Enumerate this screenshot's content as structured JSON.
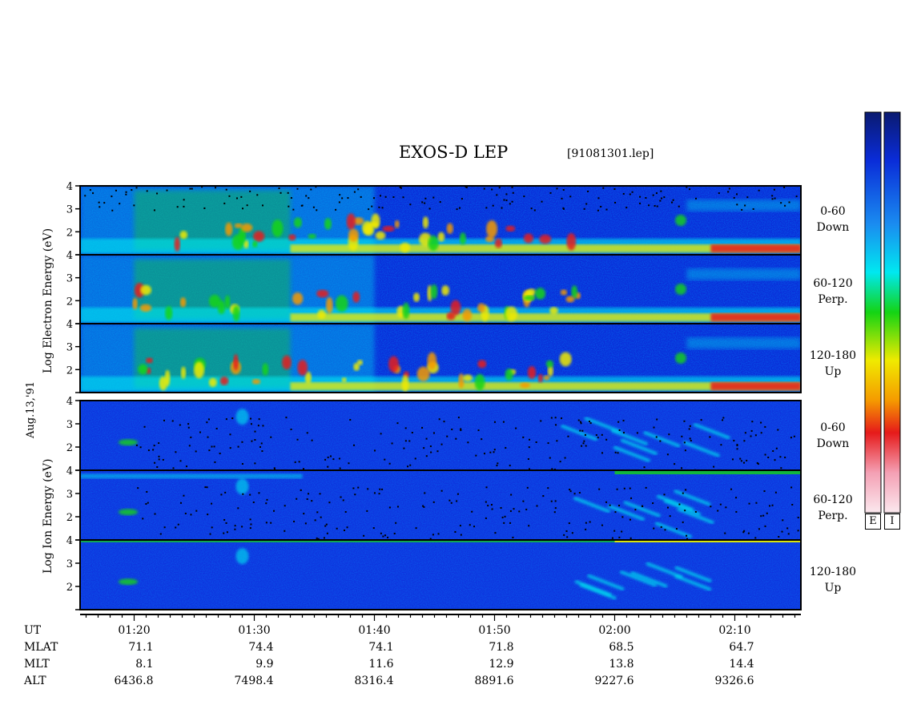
{
  "title": "EXOS-D LEP",
  "file_label": "[91081301.lep]",
  "date_label": "Aug.13,'91",
  "electron_ylabel": "Log Electron Energy (eV)",
  "ion_ylabel": "Log Ion Energy (eV)",
  "colorbar_labels": [
    "E",
    "I"
  ],
  "colors": {
    "background_blue": "#0a2cd8",
    "dark_blue": "#08157a",
    "cyan": "#00e8f0",
    "green": "#14d414",
    "yellow": "#f0ea00",
    "orange": "#f59a00",
    "red": "#e61a1a"
  },
  "chart_data": {
    "type": "heatmap",
    "title": "EXOS-D LEP",
    "x_unit": "UT",
    "x_tick_labels": [
      "01:20",
      "01:30",
      "01:40",
      "01:50",
      "02:00",
      "02:10"
    ],
    "xlim": [
      "01:15.5",
      "02:15.5"
    ],
    "panels": [
      {
        "species": "Electron",
        "pitch_angle": "0-60",
        "direction": "Down",
        "ylim": [
          1,
          4
        ],
        "y_ticks": [
          "2",
          "3",
          "4"
        ]
      },
      {
        "species": "Electron",
        "pitch_angle": "60-120",
        "direction": "Perp.",
        "ylim": [
          1,
          4
        ],
        "y_ticks": [
          "2",
          "3",
          "4"
        ]
      },
      {
        "species": "Electron",
        "pitch_angle": "120-180",
        "direction": "Up",
        "ylim": [
          1,
          4
        ],
        "y_ticks": [
          "2",
          "3",
          "4"
        ]
      },
      {
        "species": "Ion",
        "pitch_angle": "0-60",
        "direction": "Down",
        "ylim": [
          1,
          4
        ],
        "y_ticks": [
          "2",
          "3",
          "4"
        ]
      },
      {
        "species": "Ion",
        "pitch_angle": "60-120",
        "direction": "Perp.",
        "ylim": [
          1,
          4
        ],
        "y_ticks": [
          "2",
          "3",
          "4"
        ]
      },
      {
        "species": "Ion",
        "pitch_angle": "120-180",
        "direction": "Up",
        "ylim": [
          1,
          4
        ],
        "y_ticks": [
          "2",
          "3",
          "4"
        ]
      }
    ],
    "ephemeris": {
      "row_labels": [
        "UT",
        "MLAT",
        "MLT",
        "ALT"
      ],
      "UT": [
        "01:20",
        "01:30",
        "01:40",
        "01:50",
        "02:00",
        "02:10"
      ],
      "MLAT": [
        "71.1",
        "74.4",
        "74.1",
        "71.8",
        "68.5",
        "64.7"
      ],
      "MLT": [
        "8.1",
        "9.9",
        "11.6",
        "12.9",
        "13.8",
        "14.4"
      ],
      "ALT": [
        "6436.8",
        "7498.4",
        "8316.4",
        "8891.6",
        "9227.6",
        "9326.6"
      ]
    }
  }
}
